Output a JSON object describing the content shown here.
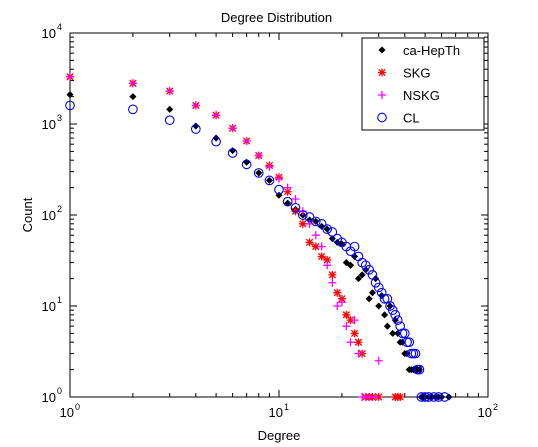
{
  "chart_data": {
    "type": "scatter",
    "title": "Degree Distribution",
    "xlabel": "Degree",
    "ylabel": "Count",
    "x_scale": "log",
    "y_scale": "log",
    "xlim": [
      1,
      100
    ],
    "ylim": [
      1,
      10000
    ],
    "x_ticks": [
      {
        "value": 1,
        "base": "10",
        "exp": "0"
      },
      {
        "value": 10,
        "base": "10",
        "exp": "1"
      },
      {
        "value": 100,
        "base": "10",
        "exp": "2"
      }
    ],
    "y_ticks": [
      {
        "value": 1,
        "base": "10",
        "exp": "0"
      },
      {
        "value": 10,
        "base": "10",
        "exp": "1"
      },
      {
        "value": 100,
        "base": "10",
        "exp": "2"
      },
      {
        "value": 1000,
        "base": "10",
        "exp": "3"
      },
      {
        "value": 10000,
        "base": "10",
        "exp": "4"
      }
    ],
    "grid": false,
    "legend_position": "top-right",
    "series": [
      {
        "name": "ca-HepTh",
        "marker": "dot",
        "color": "#000000",
        "points": [
          [
            1,
            2100
          ],
          [
            2,
            2000
          ],
          [
            3,
            1450
          ],
          [
            4,
            950
          ],
          [
            5,
            700
          ],
          [
            6,
            510
          ],
          [
            7,
            380
          ],
          [
            8,
            290
          ],
          [
            9,
            240
          ],
          [
            10,
            165
          ],
          [
            11,
            135
          ],
          [
            12,
            115
          ],
          [
            13,
            100
          ],
          [
            14,
            88
          ],
          [
            15,
            85
          ],
          [
            16,
            75
          ],
          [
            17,
            70
          ],
          [
            18,
            55
          ],
          [
            19,
            50
          ],
          [
            20,
            48
          ],
          [
            21,
            30
          ],
          [
            22,
            28
          ],
          [
            23,
            35
          ],
          [
            24,
            20
          ],
          [
            25,
            22
          ],
          [
            26,
            25
          ],
          [
            27,
            12
          ],
          [
            28,
            14
          ],
          [
            29,
            20
          ],
          [
            30,
            10
          ],
          [
            31,
            13
          ],
          [
            32,
            8
          ],
          [
            33,
            6
          ],
          [
            34,
            10
          ],
          [
            35,
            5
          ],
          [
            36,
            7
          ],
          [
            37,
            5
          ],
          [
            38,
            4
          ],
          [
            39,
            4
          ],
          [
            40,
            3
          ],
          [
            41,
            3
          ],
          [
            42,
            2
          ],
          [
            43,
            2
          ],
          [
            44,
            2
          ],
          [
            45,
            2
          ],
          [
            46,
            2
          ],
          [
            47,
            2
          ],
          [
            48,
            1
          ],
          [
            49,
            1
          ],
          [
            50,
            1
          ],
          [
            52,
            1
          ],
          [
            54,
            1
          ],
          [
            56,
            1
          ],
          [
            58,
            1
          ],
          [
            60,
            1
          ],
          [
            65,
            1
          ]
        ]
      },
      {
        "name": "SKG",
        "marker": "asterisk",
        "color": "#ff0000",
        "points": [
          [
            1,
            3300
          ],
          [
            2,
            2800
          ],
          [
            3,
            2300
          ],
          [
            4,
            1600
          ],
          [
            5,
            1250
          ],
          [
            6,
            900
          ],
          [
            7,
            650
          ],
          [
            8,
            450
          ],
          [
            9,
            350
          ],
          [
            10,
            260
          ],
          [
            11,
            180
          ],
          [
            12,
            110
          ],
          [
            13,
            80
          ],
          [
            14,
            50
          ],
          [
            15,
            45
          ],
          [
            16,
            35
          ],
          [
            17,
            32
          ],
          [
            18,
            22
          ],
          [
            19,
            14
          ],
          [
            20,
            12
          ],
          [
            21,
            8
          ],
          [
            22,
            7
          ],
          [
            23,
            5
          ],
          [
            24,
            4
          ],
          [
            25,
            3
          ],
          [
            26,
            1
          ],
          [
            27,
            1
          ],
          [
            28,
            1
          ],
          [
            30,
            1
          ],
          [
            36,
            1
          ],
          [
            37,
            1
          ],
          [
            38,
            1
          ]
        ]
      },
      {
        "name": "NSKG",
        "marker": "plus",
        "color": "#ff00ff",
        "points": [
          [
            1,
            3300
          ],
          [
            2,
            2800
          ],
          [
            3,
            2300
          ],
          [
            4,
            1600
          ],
          [
            5,
            1250
          ],
          [
            6,
            900
          ],
          [
            7,
            650
          ],
          [
            8,
            450
          ],
          [
            9,
            340
          ],
          [
            10,
            250
          ],
          [
            11,
            200
          ],
          [
            12,
            150
          ],
          [
            13,
            110
          ],
          [
            14,
            80
          ],
          [
            15,
            60
          ],
          [
            16,
            45
          ],
          [
            17,
            28
          ],
          [
            18,
            18
          ],
          [
            19,
            10
          ],
          [
            20,
            11
          ],
          [
            21,
            6
          ],
          [
            22,
            4
          ],
          [
            23,
            7
          ],
          [
            24,
            3
          ],
          [
            25,
            1
          ],
          [
            26,
            1
          ],
          [
            27,
            1
          ],
          [
            29,
            1
          ],
          [
            30,
            2.5
          ]
        ]
      },
      {
        "name": "CL",
        "marker": "circle",
        "color": "#0000ff",
        "points": [
          [
            1,
            1600
          ],
          [
            2,
            1450
          ],
          [
            3,
            1100
          ],
          [
            4,
            880
          ],
          [
            5,
            640
          ],
          [
            6,
            480
          ],
          [
            7,
            360
          ],
          [
            8,
            290
          ],
          [
            9,
            240
          ],
          [
            10,
            190
          ],
          [
            11,
            140
          ],
          [
            12,
            120
          ],
          [
            13,
            100
          ],
          [
            14,
            95
          ],
          [
            15,
            85
          ],
          [
            16,
            80
          ],
          [
            17,
            70
          ],
          [
            18,
            65
          ],
          [
            19,
            55
          ],
          [
            20,
            50
          ],
          [
            21,
            45
          ],
          [
            22,
            40
          ],
          [
            23,
            45
          ],
          [
            24,
            35
          ],
          [
            25,
            30
          ],
          [
            26,
            28
          ],
          [
            27,
            25
          ],
          [
            28,
            22
          ],
          [
            29,
            18
          ],
          [
            30,
            16
          ],
          [
            31,
            14
          ],
          [
            32,
            12
          ],
          [
            33,
            12
          ],
          [
            34,
            10
          ],
          [
            35,
            9
          ],
          [
            36,
            8
          ],
          [
            37,
            7
          ],
          [
            38,
            6
          ],
          [
            39,
            5
          ],
          [
            40,
            5
          ],
          [
            41,
            4
          ],
          [
            42,
            4
          ],
          [
            43,
            3
          ],
          [
            44,
            3
          ],
          [
            45,
            3
          ],
          [
            46,
            2
          ],
          [
            47,
            2
          ],
          [
            48,
            1
          ],
          [
            50,
            1
          ],
          [
            52,
            1
          ],
          [
            55,
            1
          ],
          [
            58,
            1
          ],
          [
            62,
            1
          ]
        ]
      }
    ]
  }
}
